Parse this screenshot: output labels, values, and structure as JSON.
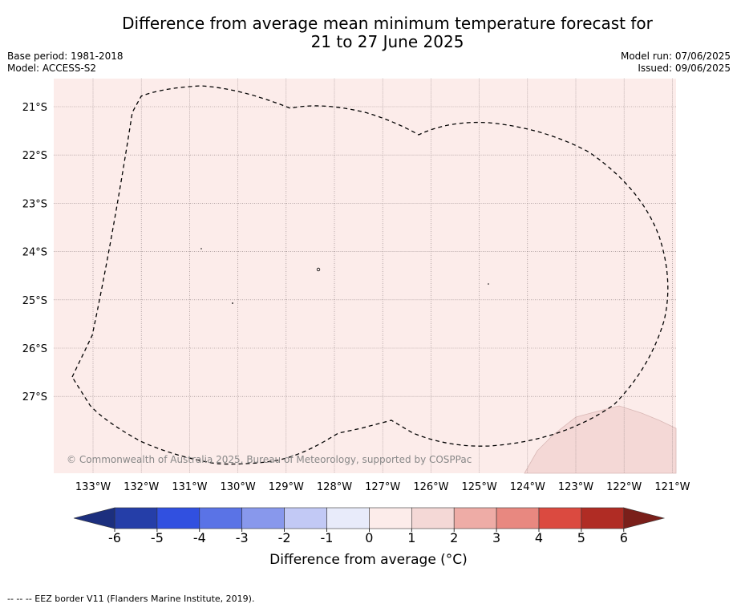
{
  "title_line1": "Difference from average mean minimum temperature forecast for",
  "title_line2": "21 to 27 June 2025",
  "base_period": "Base period: 1981-2018",
  "model": "Model: ACCESS-S2",
  "model_run": "Model run: 07/06/2025",
  "issued": "Issued: 09/06/2025",
  "copyright": "© Commonwealth of Australia 2025, Bureau of Meteorology, supported by COSPPac",
  "lat_labels": [
    "21°S",
    "22°S",
    "23°S",
    "24°S",
    "25°S",
    "26°S",
    "27°S"
  ],
  "lon_labels": [
    "133°W",
    "132°W",
    "131°W",
    "130°W",
    "129°W",
    "128°W",
    "127°W",
    "126°W",
    "125°W",
    "124°W",
    "123°W",
    "122°W",
    "121°W"
  ],
  "colorbar": {
    "title": "Difference from average (°C)",
    "tick_labels": [
      "-6",
      "-5",
      "-4",
      "-3",
      "-2",
      "-1",
      "0",
      "1",
      "2",
      "3",
      "4",
      "5",
      "6"
    ],
    "colors": [
      "#253ea8",
      "#3150e0",
      "#5a73e6",
      "#8898ec",
      "#c2c9f5",
      "#e8ebfa",
      "#fcecea",
      "#f4d8d6",
      "#eeaca6",
      "#e88880",
      "#db4a40",
      "#b02c24"
    ],
    "under_color": "#1c2f7e",
    "over_color": "#7a1f1a"
  },
  "background_color": "#fcecea",
  "land_color": "#f4d8d6",
  "footer": "--  --  -- EEZ border V11 (Flanders Marine Institute, 2019)."
}
